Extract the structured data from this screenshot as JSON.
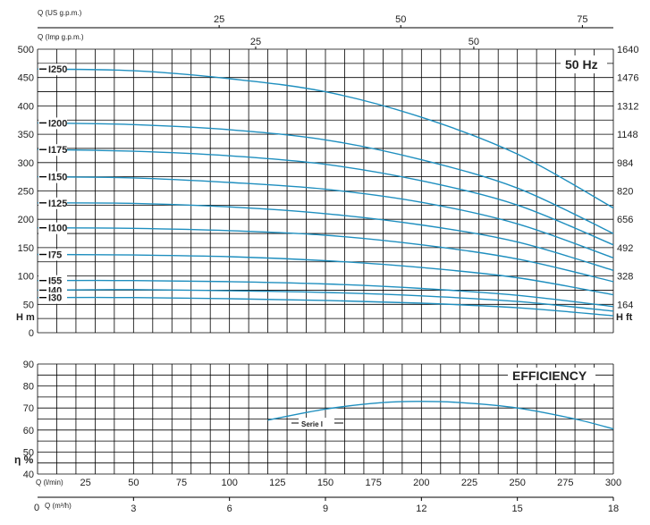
{
  "chart_data": [
    {
      "type": "line",
      "badge": "50 Hz",
      "top_axis_1": {
        "label": "Q (US g.p.m.)",
        "ticks": [
          "25",
          "50",
          "75"
        ],
        "values": [
          25,
          50,
          75
        ]
      },
      "top_axis_2": {
        "label": "Q (Imp g.p.m.)",
        "ticks": [
          "25",
          "50"
        ],
        "values": [
          25,
          50
        ]
      },
      "left_axis": {
        "label": "H m",
        "ylim": [
          0,
          500
        ],
        "ticks": [
          "0",
          "50",
          "100",
          "150",
          "200",
          "250",
          "300",
          "350",
          "400",
          "450",
          "500"
        ]
      },
      "right_axis": {
        "label": "H ft",
        "ticks": [
          "164",
          "328",
          "492",
          "656",
          "820",
          "984",
          "1148",
          "1312",
          "1476",
          "1640"
        ]
      },
      "x_unit": "l/min",
      "xlim": [
        0,
        300
      ],
      "grid": true,
      "series": [
        {
          "name": "I250",
          "x": [
            0,
            50,
            100,
            150,
            200,
            250,
            300
          ],
          "values": [
            465,
            462,
            448,
            425,
            380,
            315,
            220
          ]
        },
        {
          "name": "I200",
          "x": [
            0,
            50,
            100,
            150,
            200,
            250,
            300
          ],
          "values": [
            370,
            367,
            358,
            340,
            305,
            255,
            175
          ]
        },
        {
          "name": "I175",
          "x": [
            0,
            50,
            100,
            150,
            200,
            250,
            300
          ],
          "values": [
            323,
            320,
            312,
            297,
            268,
            225,
            155
          ]
        },
        {
          "name": "I150",
          "x": [
            0,
            50,
            100,
            150,
            200,
            250,
            300
          ],
          "values": [
            275,
            273,
            265,
            253,
            230,
            192,
            132
          ]
        },
        {
          "name": "I125",
          "x": [
            0,
            50,
            100,
            150,
            200,
            250,
            300
          ],
          "values": [
            229,
            228,
            222,
            210,
            190,
            160,
            110
          ]
        },
        {
          "name": "I100",
          "x": [
            0,
            50,
            100,
            150,
            200,
            250,
            300
          ],
          "values": [
            185,
            184,
            180,
            172,
            155,
            130,
            90
          ]
        },
        {
          "name": "I75",
          "x": [
            0,
            50,
            100,
            150,
            200,
            250,
            300
          ],
          "values": [
            138,
            137,
            134,
            127,
            115,
            97,
            67
          ]
        },
        {
          "name": "I55",
          "x": [
            0,
            50,
            100,
            150,
            200,
            250,
            300
          ],
          "values": [
            92,
            92,
            90,
            86,
            78,
            66,
            46
          ]
        },
        {
          "name": "I40",
          "x": [
            0,
            50,
            100,
            150,
            200,
            250,
            300
          ],
          "values": [
            75,
            76,
            74,
            71,
            65,
            55,
            38
          ]
        },
        {
          "name": "I30",
          "x": [
            0,
            50,
            100,
            150,
            200,
            250,
            300
          ],
          "values": [
            62,
            62,
            60,
            57,
            52,
            44,
            30
          ]
        }
      ]
    },
    {
      "type": "line",
      "title": "EFFICIENCY",
      "ylabel": "η %",
      "ylim": [
        40,
        90
      ],
      "yticks": [
        "40",
        "50",
        "60",
        "70",
        "80",
        "90"
      ],
      "xlim": [
        0,
        300
      ],
      "grid": true,
      "series": [
        {
          "name": "Serie I",
          "x": [
            120,
            150,
            180,
            200,
            220,
            250,
            280,
            300
          ],
          "values": [
            64.5,
            69.5,
            72.5,
            73,
            72.5,
            70,
            65,
            60.5
          ]
        }
      ]
    }
  ],
  "bottom_axes": {
    "q_lmin": {
      "label": "Q (l/min)",
      "ticks": [
        "25",
        "50",
        "75",
        "100",
        "125",
        "150",
        "175",
        "200",
        "225",
        "250",
        "275",
        "300"
      ]
    },
    "q_m3h": {
      "zero": "0",
      "label": "Q (m³/h)",
      "ticks": [
        "3",
        "6",
        "9",
        "12",
        "15",
        "18"
      ]
    }
  },
  "colors": {
    "curve": "#1f8fbf",
    "grid": "#000000"
  }
}
